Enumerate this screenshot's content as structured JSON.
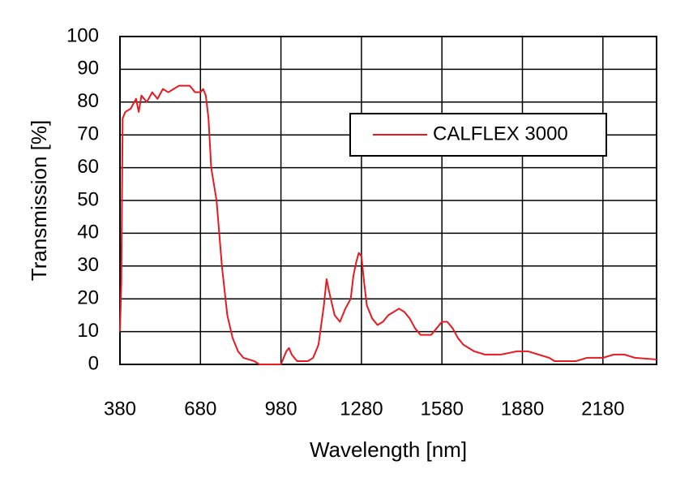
{
  "chart_data": {
    "type": "line",
    "xlabel": "Wavelength  [nm]",
    "ylabel": "Transmission [%]",
    "xlim": [
      380,
      2380
    ],
    "xticks": [
      380,
      680,
      980,
      1280,
      1580,
      1880,
      2180
    ],
    "ylim": [
      0,
      100
    ],
    "yticks": [
      0,
      10,
      20,
      30,
      40,
      50,
      60,
      70,
      80,
      90,
      100
    ],
    "grid": true,
    "legend": "upper-right",
    "x": [
      380,
      385,
      390,
      400,
      420,
      440,
      450,
      460,
      480,
      500,
      520,
      540,
      560,
      600,
      640,
      660,
      680,
      690,
      700,
      710,
      720,
      740,
      750,
      760,
      780,
      800,
      820,
      840,
      880,
      900,
      960,
      980,
      990,
      1000,
      1010,
      1020,
      1040,
      1080,
      1100,
      1120,
      1140,
      1150,
      1160,
      1180,
      1200,
      1220,
      1240,
      1250,
      1260,
      1270,
      1280,
      1290,
      1300,
      1320,
      1340,
      1360,
      1380,
      1400,
      1420,
      1440,
      1460,
      1480,
      1500,
      1540,
      1560,
      1580,
      1600,
      1620,
      1640,
      1660,
      1700,
      1740,
      1800,
      1860,
      1900,
      1940,
      1980,
      2000,
      2080,
      2120,
      2180,
      2220,
      2260,
      2300,
      2380
    ],
    "series": [
      {
        "name": "CALFLEX 3000",
        "color": "#e8191f",
        "values": [
          10,
          25,
          75,
          77,
          78,
          81,
          77,
          82,
          80,
          83,
          81,
          84,
          83,
          85,
          85,
          83,
          83,
          84,
          82,
          75,
          60,
          50,
          40,
          30,
          15,
          8,
          4,
          2,
          1,
          0,
          0,
          0,
          2,
          4,
          5,
          3,
          1,
          1,
          2,
          6,
          18,
          26,
          22,
          15,
          13,
          17,
          20,
          27,
          31,
          34,
          33,
          25,
          18,
          14,
          12,
          13,
          15,
          16,
          17,
          16,
          14,
          11,
          9,
          9,
          11,
          13,
          13,
          11,
          8,
          6,
          4,
          3,
          3,
          4,
          4,
          3,
          2,
          1,
          1,
          2,
          2,
          3,
          3,
          2,
          1.5
        ]
      }
    ]
  }
}
